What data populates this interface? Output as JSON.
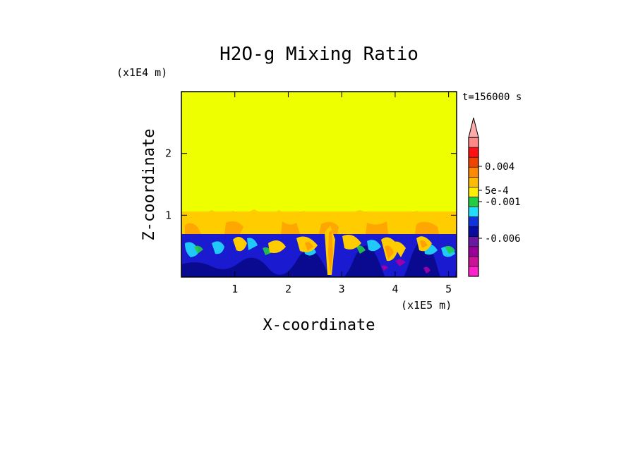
{
  "chart_data": {
    "type": "heatmap",
    "title": "H2O-g Mixing Ratio",
    "xlabel": "X-coordinate",
    "ylabel": "Z-coordinate",
    "x_scale_label": "(x1E5 m)",
    "y_scale_label": "(x1E4 m)",
    "time_label": "t=156000 s",
    "xlim": [
      0,
      5.15
    ],
    "ylim": [
      0,
      3.0
    ],
    "x_ticks": [
      1,
      2,
      3,
      4,
      5
    ],
    "y_ticks": [
      1,
      2
    ],
    "x_tick_labels": [
      "1",
      "2",
      "3",
      "4",
      "5"
    ],
    "y_tick_labels": [
      "1",
      "2"
    ],
    "colorbar": {
      "colors": [
        "#ff22cc",
        "#cc1199",
        "#990099",
        "#6a1aa0",
        "#0a0aa0",
        "#1133dd",
        "#22ddff",
        "#22cc44",
        "#ffee00",
        "#ffbb00",
        "#ff8800",
        "#ee4400",
        "#ff1111",
        "#ff8888"
      ],
      "labels": [
        "0.004",
        "5e-4",
        "-0.001",
        "-0.006"
      ],
      "extend": "max"
    },
    "regions": [
      {
        "name": "upper layer",
        "x": [
          0,
          5.15
        ],
        "z": [
          1.0,
          3.0
        ],
        "color": "#eeff00"
      },
      {
        "name": "transition layer",
        "x": [
          0,
          5.15
        ],
        "z": [
          0.7,
          1.0
        ],
        "color": "#ffcc00"
      },
      {
        "name": "lower layer",
        "x": [
          0,
          5.15
        ],
        "z": [
          0,
          0.7
        ],
        "color": "#1a1ad0"
      }
    ]
  }
}
